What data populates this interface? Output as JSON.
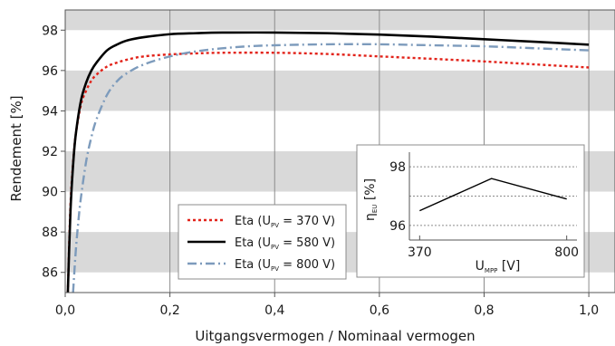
{
  "chart_data": [
    {
      "type": "line",
      "xlabel": "Uitgangsvermogen / Nominaal vermogen",
      "ylabel": "Rendement [%]",
      "xlim": [
        0,
        1.05
      ],
      "ylim": [
        85,
        99
      ],
      "xticks": [
        "0,0",
        "0,2",
        "0,4",
        "0,6",
        "0,8",
        "1,0"
      ],
      "yticks": [
        "86",
        "88",
        "90",
        "92",
        "94",
        "96",
        "98"
      ],
      "legend_position": "bottom-left",
      "series": [
        {
          "name": "Eta (U_PV = 370 V)",
          "label_prefix": "Eta (U",
          "label_sub": "PV",
          "label_suffix": " = 370 V)",
          "color": "#e2231a",
          "style": "dotted",
          "x": [
            0.005,
            0.01,
            0.015,
            0.02,
            0.03,
            0.04,
            0.05,
            0.06,
            0.08,
            0.1,
            0.12,
            0.15,
            0.2,
            0.25,
            0.3,
            0.4,
            0.5,
            0.6,
            0.7,
            0.8,
            0.9,
            1.0
          ],
          "y": [
            85.0,
            89.3,
            91.4,
            92.8,
            94.3,
            95.0,
            95.5,
            95.8,
            96.2,
            96.4,
            96.55,
            96.7,
            96.8,
            96.85,
            96.88,
            96.88,
            96.82,
            96.7,
            96.58,
            96.45,
            96.3,
            96.15
          ]
        },
        {
          "name": "Eta (U_PV = 580 V)",
          "label_prefix": "Eta (U",
          "label_sub": "PV",
          "label_suffix": " = 580 V)",
          "color": "#000000",
          "style": "solid",
          "x": [
            0.005,
            0.01,
            0.015,
            0.02,
            0.03,
            0.04,
            0.05,
            0.06,
            0.08,
            0.1,
            0.12,
            0.15,
            0.2,
            0.25,
            0.3,
            0.4,
            0.5,
            0.6,
            0.7,
            0.8,
            0.9,
            1.0
          ],
          "y": [
            85.0,
            89.0,
            91.3,
            92.8,
            94.5,
            95.4,
            96.0,
            96.4,
            97.0,
            97.3,
            97.5,
            97.65,
            97.8,
            97.85,
            97.88,
            97.88,
            97.85,
            97.78,
            97.68,
            97.55,
            97.42,
            97.28
          ]
        },
        {
          "name": "Eta (U_PV = 800 V)",
          "label_prefix": "Eta (U",
          "label_sub": "PV",
          "label_suffix": " = 800 V)",
          "color": "#7d9bbc",
          "style": "dashdot",
          "x": [
            0.015,
            0.02,
            0.025,
            0.03,
            0.04,
            0.05,
            0.06,
            0.08,
            0.1,
            0.12,
            0.15,
            0.2,
            0.25,
            0.3,
            0.35,
            0.4,
            0.5,
            0.6,
            0.7,
            0.8,
            0.9,
            1.0
          ],
          "y": [
            85.0,
            87.0,
            88.5,
            89.7,
            91.5,
            92.7,
            93.6,
            94.8,
            95.5,
            95.9,
            96.3,
            96.7,
            96.95,
            97.1,
            97.2,
            97.25,
            97.3,
            97.3,
            97.25,
            97.2,
            97.1,
            97.0
          ]
        }
      ]
    },
    {
      "type": "line",
      "xlabel_prefix": "U",
      "xlabel_sub": "MPP",
      "xlabel_suffix": " [V]",
      "ylabel_prefix": "η",
      "ylabel_sub": "EU",
      "ylabel_suffix": " [%]",
      "xlim": [
        340,
        830
      ],
      "ylim": [
        95.5,
        98.5
      ],
      "xticks": [
        "370",
        "800"
      ],
      "yticks": [
        "96",
        "98"
      ],
      "grid_y": [
        96,
        97,
        98
      ],
      "series": [
        {
          "color": "#000000",
          "x": [
            370,
            580,
            800
          ],
          "y": [
            96.5,
            97.6,
            96.9
          ]
        }
      ]
    }
  ]
}
